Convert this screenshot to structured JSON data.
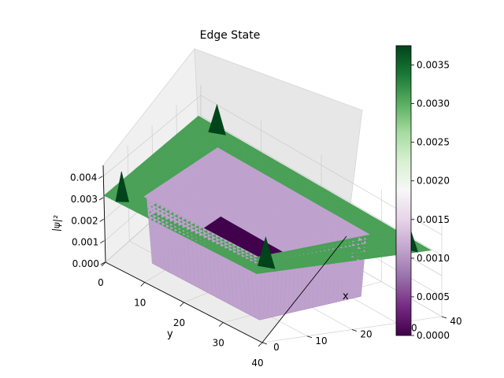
{
  "chart_data": {
    "type": "surface3d",
    "title": "Edge State",
    "xlabel": "x",
    "ylabel": "y",
    "zlabel": "|ψ|²",
    "x_ticks": [
      "0",
      "10",
      "20",
      "30",
      "40"
    ],
    "y_ticks": [
      "0",
      "10",
      "20",
      "30",
      "40"
    ],
    "z_ticks": [
      "0.000",
      "0.001",
      "0.002",
      "0.003",
      "0.004"
    ],
    "xlim": [
      0,
      40
    ],
    "ylim": [
      0,
      40
    ],
    "zlim": [
      0,
      0.0045
    ],
    "colorbar": {
      "cmap": "PRGn",
      "min": 0.0,
      "max": 0.00375,
      "ticks": [
        "0.0000",
        "0.0005",
        "0.0010",
        "0.0015",
        "0.0020",
        "0.0025",
        "0.0030",
        "0.0035"
      ]
    },
    "surface": {
      "grid_min": 0,
      "grid_max": 39,
      "edge_band_width": 7,
      "edge_value": 0.0031,
      "interior_value": 0.0,
      "corner_peak_value": 0.0045
    },
    "grid": true
  }
}
